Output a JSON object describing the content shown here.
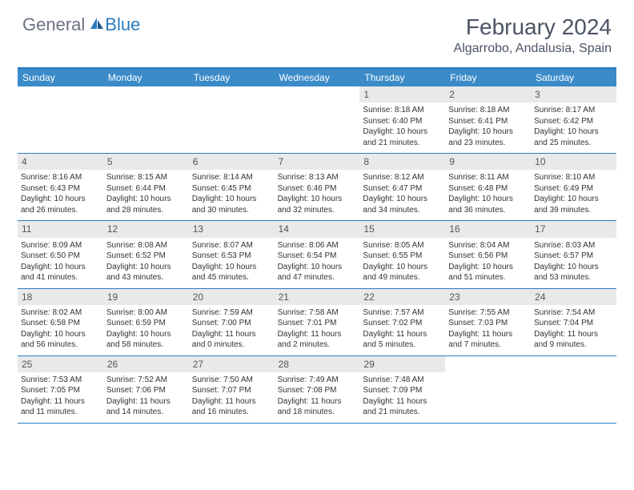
{
  "brand": {
    "text1": "General",
    "text2": "Blue"
  },
  "title": "February 2024",
  "location": "Algarrobo, Andalusia, Spain",
  "colors": {
    "header_bg": "#3b8bc9",
    "border": "#2b7bbf",
    "daynum_bg": "#e9e9e9",
    "text": "#333333",
    "title_text": "#4b5563",
    "logo_gray": "#6b7280",
    "logo_blue": "#2b7bbf"
  },
  "day_names": [
    "Sunday",
    "Monday",
    "Tuesday",
    "Wednesday",
    "Thursday",
    "Friday",
    "Saturday"
  ],
  "weeks": [
    [
      {
        "n": "",
        "empty": true
      },
      {
        "n": "",
        "empty": true
      },
      {
        "n": "",
        "empty": true
      },
      {
        "n": "",
        "empty": true
      },
      {
        "n": "1",
        "sr": "Sunrise: 8:18 AM",
        "ss": "Sunset: 6:40 PM",
        "dl": "Daylight: 10 hours and 21 minutes."
      },
      {
        "n": "2",
        "sr": "Sunrise: 8:18 AM",
        "ss": "Sunset: 6:41 PM",
        "dl": "Daylight: 10 hours and 23 minutes."
      },
      {
        "n": "3",
        "sr": "Sunrise: 8:17 AM",
        "ss": "Sunset: 6:42 PM",
        "dl": "Daylight: 10 hours and 25 minutes."
      }
    ],
    [
      {
        "n": "4",
        "sr": "Sunrise: 8:16 AM",
        "ss": "Sunset: 6:43 PM",
        "dl": "Daylight: 10 hours and 26 minutes."
      },
      {
        "n": "5",
        "sr": "Sunrise: 8:15 AM",
        "ss": "Sunset: 6:44 PM",
        "dl": "Daylight: 10 hours and 28 minutes."
      },
      {
        "n": "6",
        "sr": "Sunrise: 8:14 AM",
        "ss": "Sunset: 6:45 PM",
        "dl": "Daylight: 10 hours and 30 minutes."
      },
      {
        "n": "7",
        "sr": "Sunrise: 8:13 AM",
        "ss": "Sunset: 6:46 PM",
        "dl": "Daylight: 10 hours and 32 minutes."
      },
      {
        "n": "8",
        "sr": "Sunrise: 8:12 AM",
        "ss": "Sunset: 6:47 PM",
        "dl": "Daylight: 10 hours and 34 minutes."
      },
      {
        "n": "9",
        "sr": "Sunrise: 8:11 AM",
        "ss": "Sunset: 6:48 PM",
        "dl": "Daylight: 10 hours and 36 minutes."
      },
      {
        "n": "10",
        "sr": "Sunrise: 8:10 AM",
        "ss": "Sunset: 6:49 PM",
        "dl": "Daylight: 10 hours and 39 minutes."
      }
    ],
    [
      {
        "n": "11",
        "sr": "Sunrise: 8:09 AM",
        "ss": "Sunset: 6:50 PM",
        "dl": "Daylight: 10 hours and 41 minutes."
      },
      {
        "n": "12",
        "sr": "Sunrise: 8:08 AM",
        "ss": "Sunset: 6:52 PM",
        "dl": "Daylight: 10 hours and 43 minutes."
      },
      {
        "n": "13",
        "sr": "Sunrise: 8:07 AM",
        "ss": "Sunset: 6:53 PM",
        "dl": "Daylight: 10 hours and 45 minutes."
      },
      {
        "n": "14",
        "sr": "Sunrise: 8:06 AM",
        "ss": "Sunset: 6:54 PM",
        "dl": "Daylight: 10 hours and 47 minutes."
      },
      {
        "n": "15",
        "sr": "Sunrise: 8:05 AM",
        "ss": "Sunset: 6:55 PM",
        "dl": "Daylight: 10 hours and 49 minutes."
      },
      {
        "n": "16",
        "sr": "Sunrise: 8:04 AM",
        "ss": "Sunset: 6:56 PM",
        "dl": "Daylight: 10 hours and 51 minutes."
      },
      {
        "n": "17",
        "sr": "Sunrise: 8:03 AM",
        "ss": "Sunset: 6:57 PM",
        "dl": "Daylight: 10 hours and 53 minutes."
      }
    ],
    [
      {
        "n": "18",
        "sr": "Sunrise: 8:02 AM",
        "ss": "Sunset: 6:58 PM",
        "dl": "Daylight: 10 hours and 56 minutes."
      },
      {
        "n": "19",
        "sr": "Sunrise: 8:00 AM",
        "ss": "Sunset: 6:59 PM",
        "dl": "Daylight: 10 hours and 58 minutes."
      },
      {
        "n": "20",
        "sr": "Sunrise: 7:59 AM",
        "ss": "Sunset: 7:00 PM",
        "dl": "Daylight: 11 hours and 0 minutes."
      },
      {
        "n": "21",
        "sr": "Sunrise: 7:58 AM",
        "ss": "Sunset: 7:01 PM",
        "dl": "Daylight: 11 hours and 2 minutes."
      },
      {
        "n": "22",
        "sr": "Sunrise: 7:57 AM",
        "ss": "Sunset: 7:02 PM",
        "dl": "Daylight: 11 hours and 5 minutes."
      },
      {
        "n": "23",
        "sr": "Sunrise: 7:55 AM",
        "ss": "Sunset: 7:03 PM",
        "dl": "Daylight: 11 hours and 7 minutes."
      },
      {
        "n": "24",
        "sr": "Sunrise: 7:54 AM",
        "ss": "Sunset: 7:04 PM",
        "dl": "Daylight: 11 hours and 9 minutes."
      }
    ],
    [
      {
        "n": "25",
        "sr": "Sunrise: 7:53 AM",
        "ss": "Sunset: 7:05 PM",
        "dl": "Daylight: 11 hours and 11 minutes."
      },
      {
        "n": "26",
        "sr": "Sunrise: 7:52 AM",
        "ss": "Sunset: 7:06 PM",
        "dl": "Daylight: 11 hours and 14 minutes."
      },
      {
        "n": "27",
        "sr": "Sunrise: 7:50 AM",
        "ss": "Sunset: 7:07 PM",
        "dl": "Daylight: 11 hours and 16 minutes."
      },
      {
        "n": "28",
        "sr": "Sunrise: 7:49 AM",
        "ss": "Sunset: 7:08 PM",
        "dl": "Daylight: 11 hours and 18 minutes."
      },
      {
        "n": "29",
        "sr": "Sunrise: 7:48 AM",
        "ss": "Sunset: 7:09 PM",
        "dl": "Daylight: 11 hours and 21 minutes."
      },
      {
        "n": "",
        "empty": true
      },
      {
        "n": "",
        "empty": true
      }
    ]
  ]
}
